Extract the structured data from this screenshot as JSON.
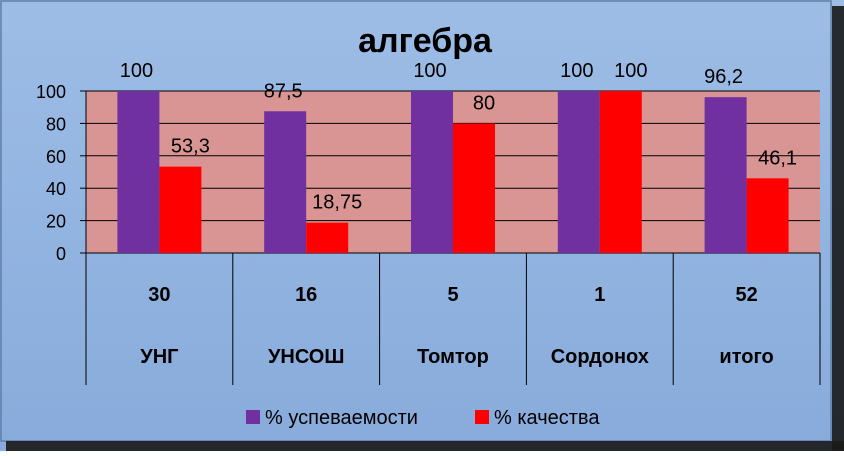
{
  "chart_data": {
    "type": "bar",
    "title": "алгебра",
    "ylim": [
      0,
      100
    ],
    "yticks": [
      0,
      20,
      40,
      60,
      80,
      100
    ],
    "categories": [
      "УНГ",
      "УНСОШ",
      "Томтор",
      "Сордонох",
      "итого"
    ],
    "counts": [
      "30",
      "16",
      "5",
      "1",
      "52"
    ],
    "series": [
      {
        "name": "% успеваемости",
        "color": "#7030A0",
        "values": [
          100,
          87.5,
          100,
          100,
          96.2
        ],
        "labels": [
          "100",
          "87,5",
          "100",
          "100",
          "96,2"
        ]
      },
      {
        "name": "% качества",
        "color": "#FF0000",
        "values": [
          53.3,
          18.75,
          80,
          100,
          46.1
        ],
        "labels": [
          "53,3",
          "18,75",
          "80",
          "100",
          "46,1"
        ]
      }
    ],
    "legend_position": "bottom",
    "plot_background": "#D99594",
    "chart_background": "#8EB4E3"
  }
}
